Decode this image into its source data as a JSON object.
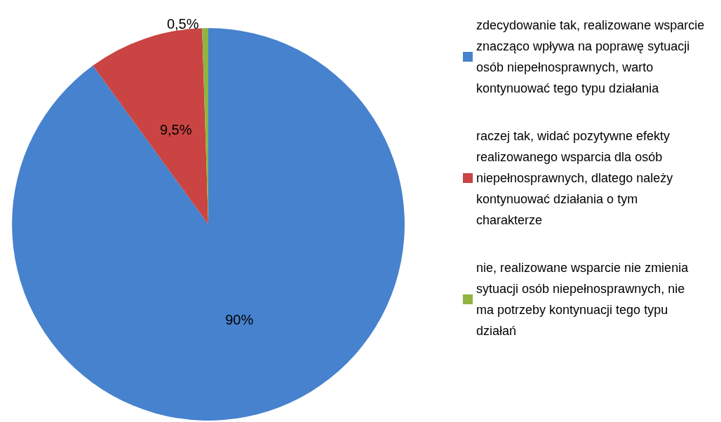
{
  "chart_data": {
    "type": "pie",
    "categories": [
      "zdecydowanie tak, realizowane wsparcie znacząco wpływa na poprawę sytuacji osób niepełnosprawnych, warto kontynuować tego typu działania",
      "raczej tak, widać pozytywne efekty realizowanego wsparcia dla osób niepełnosprawnych, dlatego należy kontynuować działania o tym charakterze",
      "nie, realizowane wsparcie nie zmienia sytuacji osób niepełnosprawnych, nie ma potrzeby kontynuacji tego typu działań"
    ],
    "values": [
      90,
      9.5,
      0.5
    ],
    "colors": [
      "#4682cd",
      "#c94442",
      "#8fb440"
    ],
    "value_labels": [
      "90%",
      "9,5%",
      "0,5%"
    ],
    "legend": "right"
  }
}
